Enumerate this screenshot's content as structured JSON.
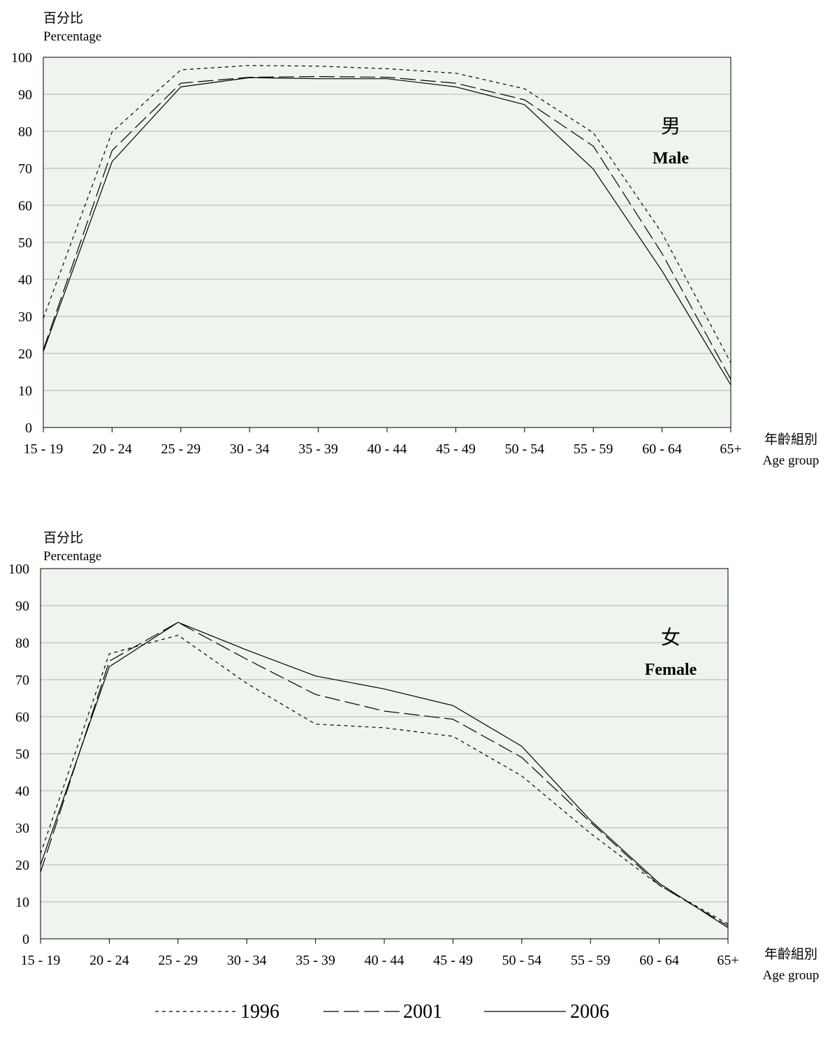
{
  "chart_data": [
    {
      "type": "line",
      "title": "男",
      "subtitle": "Male",
      "ylabel": "百分比",
      "ylabel_en": "Percentage",
      "xlabel": "年齡組別",
      "xlabel_en": "Age group",
      "categories": [
        "15 - 19",
        "20 - 24",
        "25 - 29",
        "30 - 34",
        "35 - 39",
        "40 - 44",
        "45 - 49",
        "50 - 54",
        "55 - 59",
        "60 - 64",
        "65+"
      ],
      "ylim": [
        0,
        100
      ],
      "yticks": [
        0,
        10,
        20,
        30,
        40,
        50,
        60,
        70,
        80,
        90,
        100
      ],
      "grid": true,
      "series": [
        {
          "name": "1996",
          "style": "short-dash",
          "values": [
            29.5,
            79.8,
            96.6,
            97.8,
            97.6,
            96.9,
            95.7,
            91.5,
            79.6,
            52.5,
            17.5
          ]
        },
        {
          "name": "2001",
          "style": "long-dash",
          "values": [
            21.0,
            74.8,
            93.0,
            94.6,
            94.8,
            94.6,
            93.0,
            88.5,
            76.0,
            47.0,
            13.0
          ]
        },
        {
          "name": "2006",
          "style": "solid",
          "values": [
            20.5,
            71.8,
            92.0,
            94.5,
            94.2,
            94.2,
            92.0,
            87.2,
            69.8,
            42.3,
            11.5
          ]
        }
      ]
    },
    {
      "type": "line",
      "title": "女",
      "subtitle": "Female",
      "ylabel": "百分比",
      "ylabel_en": "Percentage",
      "xlabel": "年齡組別",
      "xlabel_en": "Age group",
      "categories": [
        "15 - 19",
        "20 - 24",
        "25 - 29",
        "30 - 34",
        "35 - 39",
        "40 - 44",
        "45 - 49",
        "50 - 54",
        "55 - 59",
        "60 - 64",
        "65+"
      ],
      "ylim": [
        0,
        100
      ],
      "yticks": [
        0,
        10,
        20,
        30,
        40,
        50,
        60,
        70,
        80,
        90,
        100
      ],
      "grid": true,
      "series": [
        {
          "name": "1996",
          "style": "short-dash",
          "values": [
            23.0,
            77.0,
            82.0,
            69.0,
            58.0,
            57.0,
            54.7,
            44.0,
            28.5,
            14.5,
            4.0
          ]
        },
        {
          "name": "2001",
          "style": "long-dash",
          "values": [
            18.0,
            75.0,
            85.5,
            75.5,
            66.0,
            61.5,
            59.3,
            49.0,
            31.5,
            14.5,
            3.5
          ]
        },
        {
          "name": "2006",
          "style": "solid",
          "values": [
            20.0,
            73.5,
            85.5,
            78.0,
            71.0,
            67.5,
            63.0,
            52.0,
            32.0,
            15.0,
            3.0
          ]
        }
      ]
    }
  ],
  "legend": [
    "1996",
    "2001",
    "2006"
  ],
  "colors": {
    "line": "#000000",
    "plot_bg": "#eef5ec",
    "grid": "#8fa89a"
  }
}
